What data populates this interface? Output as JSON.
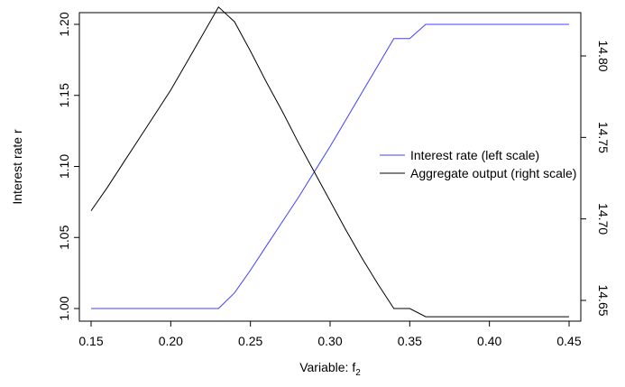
{
  "chart_data": {
    "type": "line",
    "title": "",
    "xlabel_main": "Variable: f",
    "xlabel_sub": "2",
    "ylabel_left": "Interest rate r",
    "ylabel_right": "",
    "xlim": [
      0.15,
      0.45
    ],
    "ylim_left": [
      1.0,
      1.2
    ],
    "ylim_right": [
      14.64,
      14.83
    ],
    "x_ticks": [
      "0.15",
      "0.20",
      "0.25",
      "0.30",
      "0.35",
      "0.40",
      "0.45"
    ],
    "y_left_ticks": [
      "1.00",
      "1.05",
      "1.10",
      "1.15",
      "1.20"
    ],
    "y_right_ticks": [
      "14.65",
      "14.70",
      "14.75",
      "14.80"
    ],
    "grid": false,
    "legend_position": "right",
    "series": [
      {
        "name": "Interest rate (left scale)",
        "axis": "left",
        "color": "#4040ff",
        "x": [
          0.15,
          0.16,
          0.17,
          0.18,
          0.19,
          0.2,
          0.21,
          0.22,
          0.23,
          0.24,
          0.25,
          0.26,
          0.27,
          0.28,
          0.29,
          0.3,
          0.31,
          0.32,
          0.33,
          0.34,
          0.35,
          0.36,
          0.37,
          0.38,
          0.39,
          0.4,
          0.41,
          0.42,
          0.43,
          0.44,
          0.45
        ],
        "y": [
          1.0,
          1.0,
          1.0,
          1.0,
          1.0,
          1.0,
          1.0,
          1.0,
          1.0,
          1.011,
          1.027,
          1.044,
          1.061,
          1.078,
          1.096,
          1.114,
          1.133,
          1.152,
          1.171,
          1.19,
          1.19,
          1.2,
          1.2,
          1.2,
          1.2,
          1.2,
          1.2,
          1.2,
          1.2,
          1.2,
          1.2
        ]
      },
      {
        "name": "Aggregate output (right scale)",
        "axis": "right",
        "color": "#000000",
        "x": [
          0.15,
          0.16,
          0.17,
          0.18,
          0.19,
          0.2,
          0.21,
          0.22,
          0.23,
          0.24,
          0.25,
          0.26,
          0.27,
          0.28,
          0.29,
          0.3,
          0.31,
          0.32,
          0.33,
          0.34,
          0.35,
          0.36,
          0.37,
          0.38,
          0.39,
          0.4,
          0.41,
          0.42,
          0.43,
          0.44,
          0.45
        ],
        "y": [
          14.705,
          14.719,
          14.734,
          14.749,
          14.764,
          14.779,
          14.796,
          14.813,
          14.83,
          14.821,
          14.803,
          14.784,
          14.766,
          14.747,
          14.729,
          14.711,
          14.693,
          14.676,
          14.66,
          14.645,
          14.645,
          14.64,
          14.64,
          14.64,
          14.64,
          14.64,
          14.64,
          14.64,
          14.64,
          14.64,
          14.64
        ]
      }
    ]
  }
}
